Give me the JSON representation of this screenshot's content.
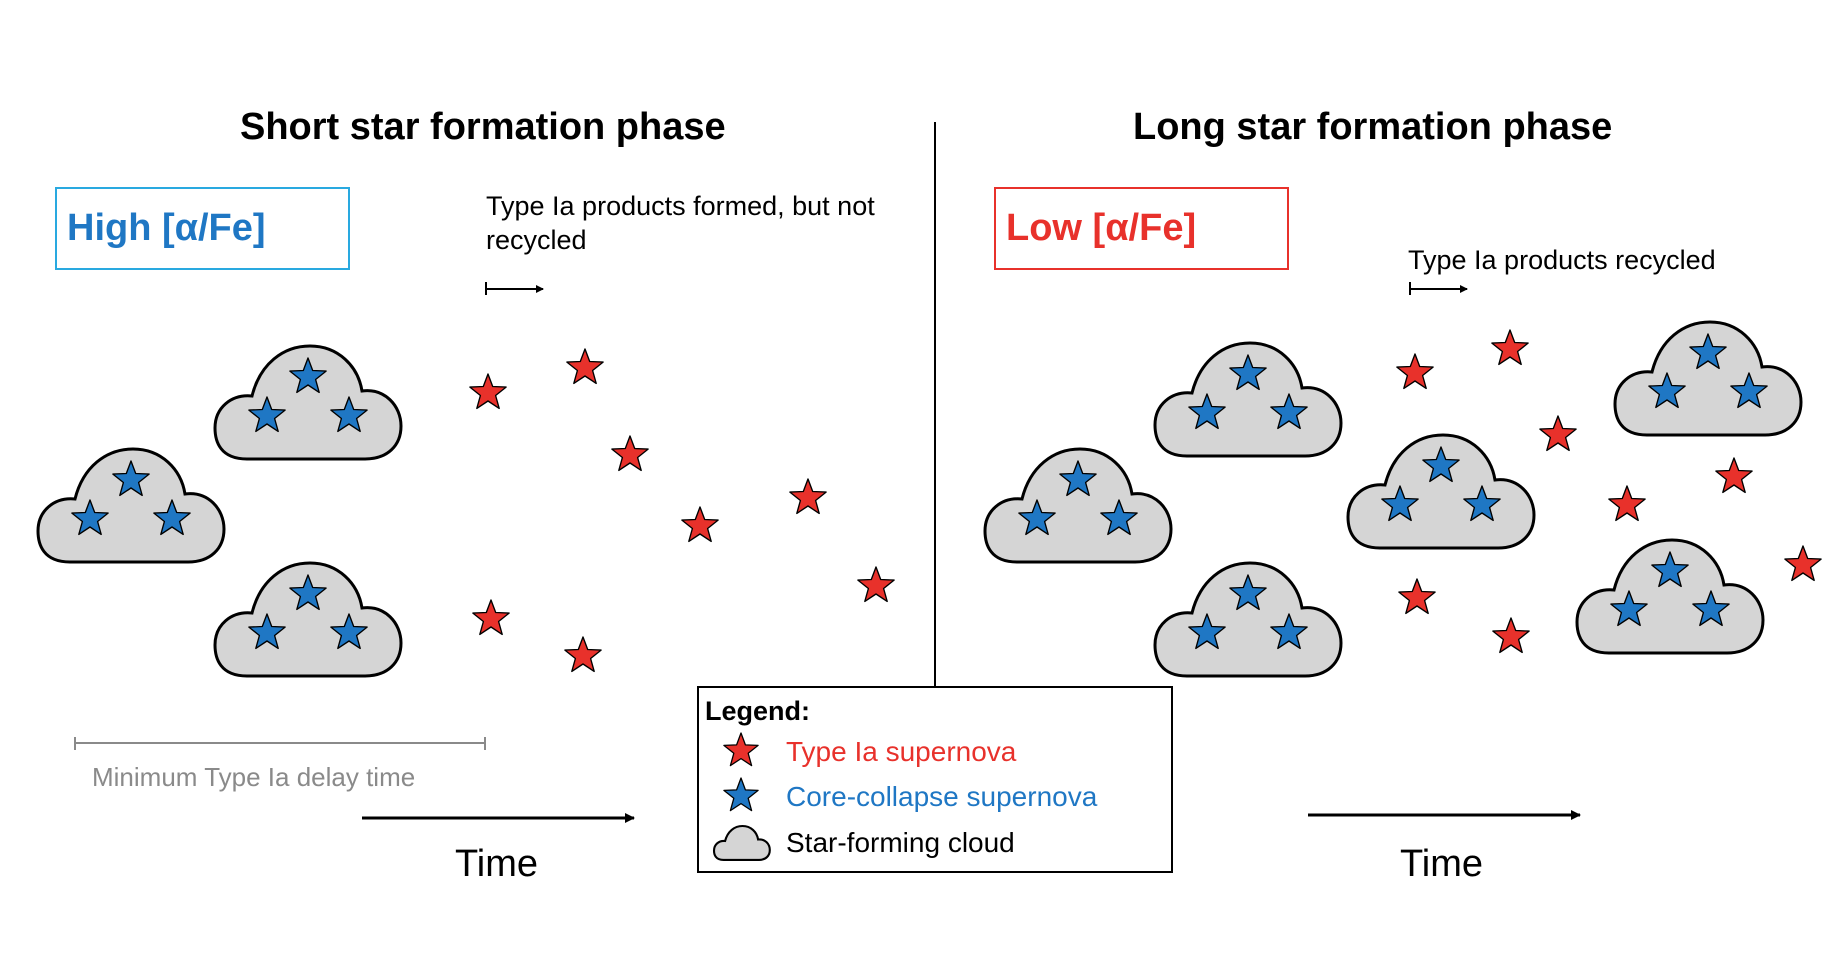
{
  "left_panel": {
    "title": "Short star formation phase",
    "abundance_label": "High [α/Fe]",
    "note": "Type Ia products formed, but not recycled",
    "delay_label": "Minimum Type Ia delay time",
    "time_label": "Time"
  },
  "right_panel": {
    "title": "Long star formation phase",
    "abundance_label": "Low [α/Fe]",
    "note": "Type Ia products recycled",
    "time_label": "Time"
  },
  "legend": {
    "title": "Legend:",
    "items": [
      {
        "label": "Type Ia supernova",
        "icon": "red-star-icon"
      },
      {
        "label": "Core-collapse supernova",
        "icon": "blue-star-icon"
      },
      {
        "label": "Star-forming cloud",
        "icon": "cloud-icon"
      }
    ]
  },
  "colors": {
    "type_ia": "#e8312b",
    "core_collapse": "#1f77c4",
    "cloud_fill": "#d5d5d5",
    "high_alpha": "#1f77c4",
    "low_alpha": "#e8312b",
    "high_box_border": "#29a9e0",
    "low_box_border": "#e8312b",
    "delay_gray": "#8a8a8a"
  }
}
